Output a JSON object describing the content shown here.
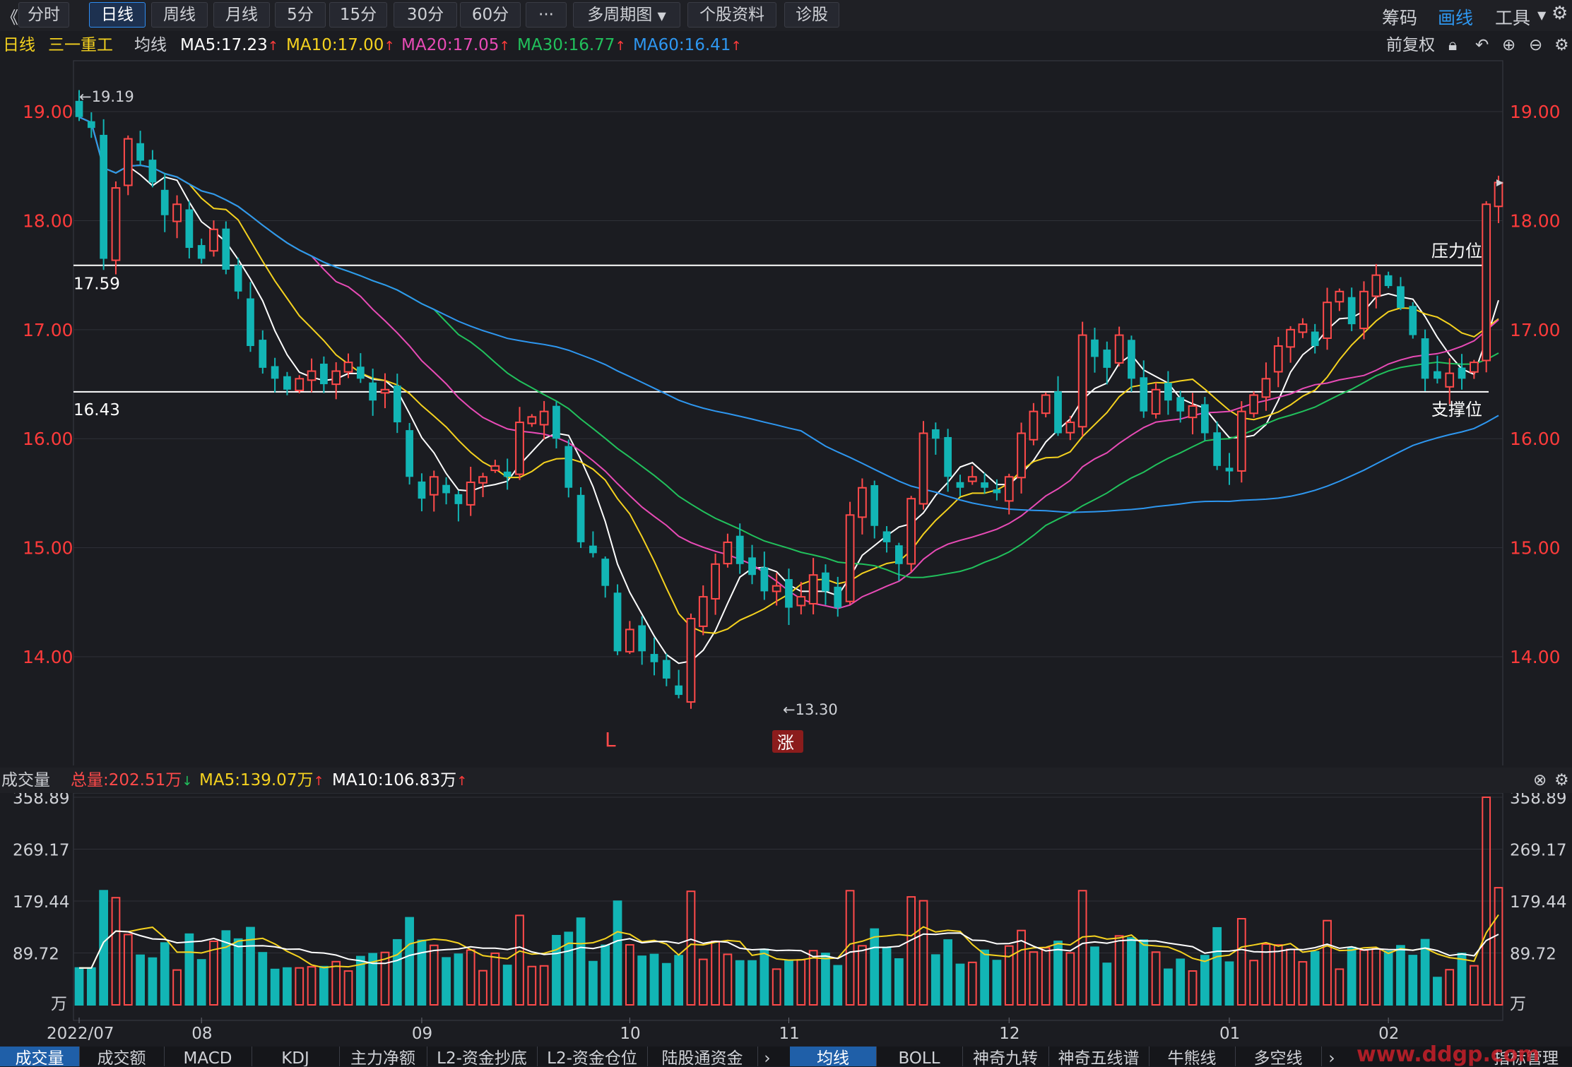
{
  "toolbar": {
    "back": "《",
    "periods": [
      "分时",
      "日线",
      "周线",
      "月线",
      "5分",
      "15分",
      "30分",
      "60分"
    ],
    "active_period": "日线",
    "more": "···",
    "multi_period": "多周期图",
    "profile": "个股资料",
    "diagnose": "诊股",
    "right": {
      "chips": "筹码",
      "draw": "画线",
      "tools": "工具"
    }
  },
  "ma_header": {
    "period": "日线",
    "stock": "三一重工",
    "label": "均线",
    "ma5": "MA5:17.23",
    "ma10": "MA10:17.00",
    "ma20": "MA20:17.05",
    "ma30": "MA30:16.77",
    "ma60": "MA60:16.41",
    "adjust": "前复权"
  },
  "colors": {
    "up": "#ff4a4a",
    "down": "#12b5b5",
    "ma5": "#ffffff",
    "ma10": "#f5d21f",
    "ma20": "#e84bb6",
    "ma30": "#21c15c",
    "ma60": "#2e97f0",
    "axis": "#ff3b3b"
  },
  "annotations": {
    "high": "←19.19",
    "low": "←13.30",
    "resistance_value": "17.59",
    "support_value": "16.43",
    "resistance_label": "压力位",
    "support_label": "支撑位",
    "l_marker": "L",
    "limit_marker": "涨"
  },
  "chart_data": {
    "type": "candlestick",
    "y_ticks": [
      "19.00",
      "18.00",
      "17.00",
      "16.00",
      "15.00",
      "14.00"
    ],
    "ylim": [
      13.1,
      19.35
    ],
    "x_ticks": [
      "2022/07",
      "08",
      "09",
      "10",
      "11",
      "12",
      "01",
      "02"
    ],
    "x_tick_index": [
      0,
      10,
      28,
      45,
      58,
      76,
      94,
      107
    ],
    "horizontal_lines": [
      17.59,
      16.43
    ],
    "close": [
      18.95,
      18.85,
      17.65,
      18.3,
      18.75,
      18.55,
      18.35,
      18.05,
      18.15,
      17.75,
      17.65,
      17.92,
      17.55,
      17.35,
      16.85,
      16.65,
      16.55,
      16.45,
      16.55,
      16.62,
      16.5,
      16.62,
      16.7,
      16.55,
      16.35,
      16.45,
      16.15,
      15.65,
      15.45,
      15.65,
      15.5,
      15.4,
      15.6,
      15.65,
      15.75,
      15.65,
      16.15,
      16.2,
      16.25,
      16.0,
      15.55,
      15.05,
      14.95,
      14.65,
      14.05,
      14.25,
      14.05,
      13.95,
      13.8,
      13.65,
      14.35,
      14.55,
      14.85,
      15.05,
      14.85,
      14.75,
      14.6,
      14.65,
      14.45,
      14.55,
      14.75,
      14.6,
      14.45,
      15.3,
      15.55,
      15.2,
      15.05,
      14.85,
      15.45,
      16.05,
      16.0,
      15.65,
      15.55,
      15.65,
      15.55,
      15.5,
      15.65,
      16.05,
      16.25,
      16.4,
      16.05,
      16.15,
      16.95,
      16.75,
      16.65,
      16.95,
      16.55,
      16.25,
      16.45,
      16.35,
      16.25,
      16.3,
      16.05,
      15.75,
      15.7,
      16.25,
      16.4,
      16.55,
      16.85,
      17.0,
      17.05,
      16.85,
      17.25,
      17.35,
      17.05,
      17.35,
      17.5,
      17.4,
      17.2,
      16.95,
      16.55,
      16.55,
      16.6,
      16.55,
      16.7,
      18.15,
      18.35
    ],
    "volume_ylim": [
      0,
      358.89
    ],
    "volume_ticks": [
      "358.89",
      "269.17",
      "179.44",
      "89.72"
    ],
    "volume_unit": "万",
    "volume_peak_values": [
      358.89,
      202.51
    ]
  },
  "volume_header": {
    "title": "成交量",
    "total": "总量:202.51万",
    "ma5": "MA5:139.07万",
    "ma10": "MA10:106.83万"
  },
  "bottom_tabs": {
    "left": [
      "成交量",
      "成交额",
      "MACD",
      "KDJ",
      "主力净额",
      "L2-资金抄底",
      "L2-资金仓位",
      "陆股通资金"
    ],
    "right": [
      "均线",
      "BOLL",
      "神奇九转",
      "神奇五线谱",
      "牛熊线",
      "多空线",
      "指标管理"
    ],
    "watermark": "www.ddgp.com"
  }
}
